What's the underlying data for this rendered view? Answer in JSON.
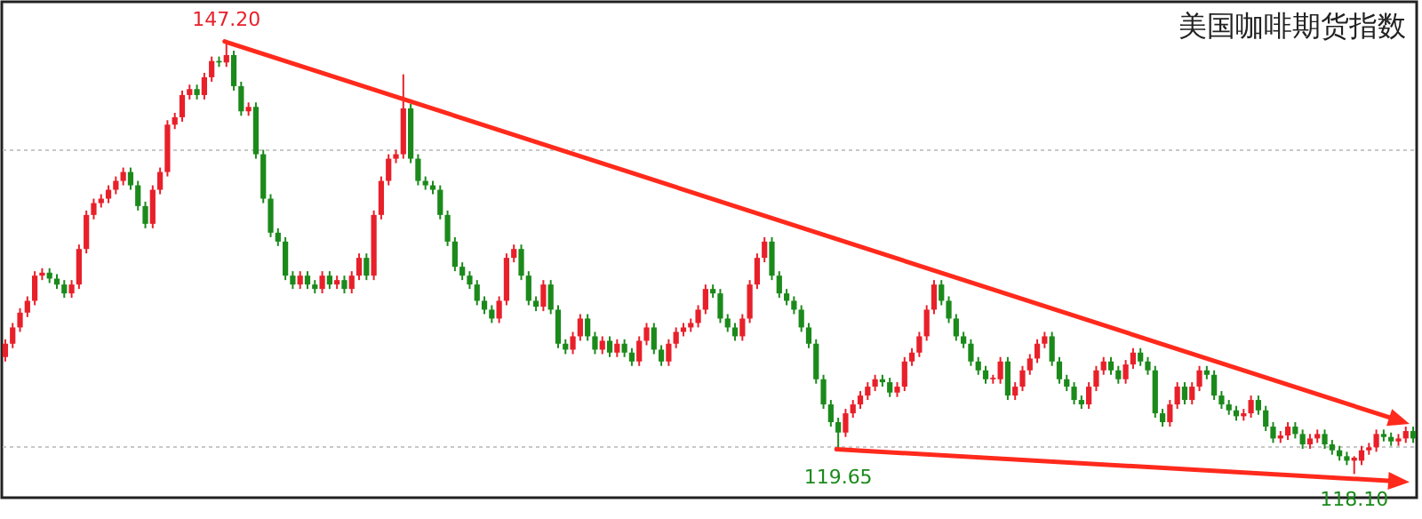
{
  "chart_data": {
    "type": "candlestick",
    "title": "美国咖啡期货指数",
    "categories": [
      null,
      null,
      null,
      null,
      null,
      null,
      null,
      null,
      null,
      null,
      null,
      null,
      null,
      null,
      null,
      null,
      null,
      null,
      null,
      null,
      null,
      null,
      null,
      null,
      null,
      null,
      null,
      null,
      null,
      null,
      null,
      null,
      null,
      null,
      null,
      null,
      null,
      null,
      null,
      null,
      null,
      null,
      null,
      null,
      null,
      null,
      null,
      null,
      null,
      null,
      null,
      null,
      null,
      null,
      null,
      null,
      null,
      null,
      null,
      null,
      null,
      null,
      null,
      null,
      null,
      null,
      null,
      null,
      null,
      null,
      null,
      null,
      null,
      null,
      null,
      null,
      null,
      null,
      null,
      null,
      null,
      null,
      null,
      null,
      null,
      null,
      null,
      null,
      null,
      null,
      null,
      null,
      null,
      null,
      null,
      null,
      null,
      null,
      null,
      null,
      null,
      null,
      null,
      null,
      null,
      null,
      null,
      null,
      null,
      null,
      null,
      null,
      null,
      null,
      null,
      null,
      null,
      null,
      null,
      null,
      null,
      null,
      null,
      null,
      null,
      null,
      null,
      null,
      null,
      null,
      null,
      null,
      null,
      null,
      null,
      null,
      null,
      null,
      null,
      null,
      null,
      null,
      null,
      null,
      null,
      null,
      null,
      null,
      null,
      null,
      null,
      null,
      null,
      null,
      null,
      null,
      null,
      null,
      null,
      null,
      null,
      null,
      null,
      null,
      null,
      null,
      null,
      null,
      null,
      null,
      null,
      null,
      null,
      null,
      null,
      null,
      null,
      null,
      null,
      null,
      null,
      null,
      null,
      null,
      null,
      null,
      null,
      null,
      null,
      null,
      null,
      null
    ],
    "ohlc": [
      [
        126.0,
        127.2,
        125.7,
        126.9
      ],
      [
        126.9,
        128.3,
        126.6,
        128.0
      ],
      [
        128.0,
        129.3,
        127.7,
        129.0
      ],
      [
        129.0,
        130.1,
        128.7,
        129.8
      ],
      [
        129.8,
        131.8,
        129.5,
        131.5
      ],
      [
        131.5,
        132.0,
        131.2,
        131.7
      ],
      [
        131.7,
        132.0,
        131.0,
        131.3
      ],
      [
        131.3,
        131.6,
        130.6,
        130.9
      ],
      [
        130.9,
        131.2,
        130.0,
        130.3
      ],
      [
        130.3,
        131.2,
        130.0,
        130.9
      ],
      [
        130.9,
        133.6,
        130.6,
        133.3
      ],
      [
        133.3,
        135.9,
        133.0,
        135.6
      ],
      [
        135.6,
        136.7,
        135.3,
        136.4
      ],
      [
        136.4,
        137.0,
        136.1,
        136.7
      ],
      [
        136.7,
        137.6,
        136.4,
        137.3
      ],
      [
        137.3,
        138.2,
        137.0,
        137.9
      ],
      [
        137.9,
        138.8,
        137.6,
        138.5
      ],
      [
        138.5,
        138.8,
        137.3,
        137.6
      ],
      [
        137.6,
        137.9,
        135.9,
        136.2
      ],
      [
        136.2,
        136.5,
        134.7,
        135.0
      ],
      [
        135.0,
        137.6,
        134.7,
        137.3
      ],
      [
        137.3,
        138.8,
        137.0,
        138.5
      ],
      [
        138.5,
        142.0,
        138.2,
        141.7
      ],
      [
        141.7,
        142.5,
        141.4,
        142.2
      ],
      [
        142.2,
        144.0,
        141.9,
        143.7
      ],
      [
        143.7,
        144.4,
        143.4,
        144.1
      ],
      [
        144.1,
        144.4,
        143.4,
        143.7
      ],
      [
        143.7,
        145.2,
        143.4,
        144.9
      ],
      [
        144.9,
        146.3,
        144.6,
        146.0
      ],
      [
        146.0,
        146.3,
        145.6,
        145.9
      ],
      [
        145.9,
        147.2,
        145.6,
        146.4
      ],
      [
        146.4,
        146.7,
        144.0,
        144.3
      ],
      [
        144.3,
        144.6,
        142.3,
        142.6
      ],
      [
        142.6,
        143.2,
        142.3,
        142.9
      ],
      [
        142.9,
        143.2,
        139.4,
        139.7
      ],
      [
        139.7,
        140.0,
        136.4,
        136.7
      ],
      [
        136.7,
        137.0,
        134.1,
        134.4
      ],
      [
        134.4,
        134.7,
        133.5,
        133.8
      ],
      [
        133.8,
        134.1,
        131.2,
        131.5
      ],
      [
        131.5,
        131.8,
        130.6,
        130.9
      ],
      [
        130.9,
        131.8,
        130.6,
        131.5
      ],
      [
        131.5,
        131.8,
        130.6,
        130.9
      ],
      [
        130.9,
        131.2,
        130.3,
        130.6
      ],
      [
        130.6,
        131.8,
        130.3,
        131.5
      ],
      [
        131.5,
        131.8,
        130.6,
        130.9
      ],
      [
        130.9,
        131.5,
        130.6,
        131.2
      ],
      [
        131.2,
        131.5,
        130.3,
        130.6
      ],
      [
        130.6,
        131.8,
        130.3,
        131.5
      ],
      [
        131.5,
        133.0,
        131.2,
        132.7
      ],
      [
        132.7,
        133.0,
        131.2,
        131.5
      ],
      [
        131.5,
        135.9,
        131.2,
        135.6
      ],
      [
        135.6,
        138.2,
        135.3,
        137.9
      ],
      [
        137.9,
        139.7,
        137.6,
        139.4
      ],
      [
        139.4,
        140.0,
        139.1,
        139.7
      ],
      [
        139.7,
        145.1,
        139.4,
        142.8
      ],
      [
        142.8,
        143.1,
        139.1,
        139.4
      ],
      [
        139.4,
        139.7,
        137.6,
        137.9
      ],
      [
        137.9,
        138.2,
        137.3,
        137.6
      ],
      [
        137.6,
        137.9,
        137.0,
        137.3
      ],
      [
        137.3,
        137.6,
        135.3,
        135.6
      ],
      [
        135.6,
        135.9,
        133.5,
        133.8
      ],
      [
        133.8,
        134.1,
        131.8,
        132.1
      ],
      [
        132.1,
        132.4,
        131.2,
        131.5
      ],
      [
        131.5,
        131.8,
        130.6,
        130.9
      ],
      [
        130.9,
        131.2,
        129.5,
        129.8
      ],
      [
        129.8,
        130.1,
        128.9,
        129.2
      ],
      [
        129.2,
        129.5,
        128.3,
        128.6
      ],
      [
        128.6,
        130.1,
        128.3,
        129.8
      ],
      [
        129.8,
        133.0,
        129.5,
        132.7
      ],
      [
        132.7,
        133.6,
        132.4,
        133.3
      ],
      [
        133.3,
        133.6,
        131.2,
        131.5
      ],
      [
        131.5,
        131.8,
        129.5,
        129.8
      ],
      [
        129.8,
        130.1,
        129.1,
        129.4
      ],
      [
        129.4,
        131.2,
        129.1,
        130.9
      ],
      [
        130.9,
        131.2,
        128.9,
        129.2
      ],
      [
        129.2,
        129.5,
        126.6,
        126.9
      ],
      [
        126.9,
        127.2,
        126.2,
        126.5
      ],
      [
        126.5,
        127.7,
        126.2,
        127.4
      ],
      [
        127.4,
        128.9,
        127.1,
        128.6
      ],
      [
        128.6,
        128.9,
        127.1,
        127.4
      ],
      [
        127.4,
        127.7,
        126.2,
        126.5
      ],
      [
        126.5,
        127.4,
        126.2,
        127.1
      ],
      [
        127.1,
        127.4,
        126.0,
        126.3
      ],
      [
        126.3,
        127.2,
        126.0,
        126.9
      ],
      [
        126.9,
        127.2,
        126.0,
        126.3
      ],
      [
        126.3,
        126.6,
        125.4,
        125.7
      ],
      [
        125.7,
        127.4,
        125.4,
        127.1
      ],
      [
        127.1,
        128.3,
        126.8,
        128.0
      ],
      [
        128.0,
        128.3,
        126.2,
        126.5
      ],
      [
        126.5,
        126.8,
        125.4,
        125.7
      ],
      [
        125.7,
        127.2,
        125.4,
        126.9
      ],
      [
        126.9,
        128.0,
        126.6,
        127.7
      ],
      [
        127.7,
        128.3,
        127.4,
        128.0
      ],
      [
        128.0,
        128.6,
        127.7,
        128.3
      ],
      [
        128.3,
        129.5,
        128.0,
        129.2
      ],
      [
        129.2,
        130.9,
        128.9,
        130.6
      ],
      [
        130.6,
        130.9,
        130.0,
        130.3
      ],
      [
        130.3,
        130.6,
        128.3,
        128.6
      ],
      [
        128.6,
        128.9,
        127.7,
        128.0
      ],
      [
        128.0,
        128.3,
        127.1,
        127.4
      ],
      [
        127.4,
        128.9,
        127.1,
        128.6
      ],
      [
        128.6,
        131.2,
        128.3,
        130.9
      ],
      [
        130.9,
        133.0,
        130.6,
        132.7
      ],
      [
        132.7,
        134.1,
        132.4,
        133.8
      ],
      [
        133.8,
        134.1,
        131.2,
        131.5
      ],
      [
        131.5,
        131.8,
        130.0,
        130.3
      ],
      [
        130.3,
        130.6,
        129.5,
        129.8
      ],
      [
        129.8,
        130.1,
        128.9,
        129.2
      ],
      [
        129.2,
        129.5,
        127.7,
        128.0
      ],
      [
        128.0,
        128.3,
        126.6,
        126.9
      ],
      [
        126.9,
        127.2,
        124.2,
        124.5
      ],
      [
        124.5,
        124.8,
        122.5,
        122.8
      ],
      [
        122.8,
        123.1,
        121.3,
        121.6
      ],
      [
        121.6,
        121.9,
        119.65,
        120.9
      ],
      [
        120.9,
        122.5,
        120.6,
        122.2
      ],
      [
        122.2,
        123.1,
        121.9,
        122.8
      ],
      [
        122.8,
        123.7,
        122.5,
        123.4
      ],
      [
        123.4,
        124.3,
        123.1,
        124.0
      ],
      [
        124.0,
        124.8,
        123.7,
        124.5
      ],
      [
        124.5,
        124.8,
        124.0,
        124.3
      ],
      [
        124.3,
        124.6,
        123.3,
        123.6
      ],
      [
        123.6,
        124.3,
        123.3,
        124.0
      ],
      [
        124.0,
        126.0,
        123.7,
        125.7
      ],
      [
        125.7,
        126.6,
        125.4,
        126.3
      ],
      [
        126.3,
        127.7,
        126.0,
        127.4
      ],
      [
        127.4,
        129.5,
        127.1,
        129.2
      ],
      [
        129.2,
        131.2,
        128.9,
        130.9
      ],
      [
        130.9,
        131.2,
        129.5,
        129.8
      ],
      [
        129.8,
        130.1,
        128.3,
        128.6
      ],
      [
        128.6,
        128.9,
        127.1,
        127.4
      ],
      [
        127.4,
        127.7,
        126.6,
        126.9
      ],
      [
        126.9,
        127.2,
        125.4,
        125.7
      ],
      [
        125.7,
        126.0,
        124.8,
        125.1
      ],
      [
        125.1,
        125.4,
        124.2,
        124.5
      ],
      [
        124.5,
        124.8,
        124.2,
        124.6
      ],
      [
        124.5,
        126.0,
        124.2,
        125.7
      ],
      [
        125.7,
        126.0,
        123.1,
        123.4
      ],
      [
        123.4,
        124.3,
        123.1,
        124.0
      ],
      [
        124.0,
        125.4,
        123.7,
        125.1
      ],
      [
        125.1,
        126.2,
        124.8,
        125.9
      ],
      [
        125.9,
        127.2,
        125.6,
        126.9
      ],
      [
        126.9,
        127.7,
        126.6,
        127.4
      ],
      [
        127.4,
        127.7,
        125.4,
        125.7
      ],
      [
        125.7,
        126.0,
        124.2,
        124.5
      ],
      [
        124.5,
        124.8,
        123.7,
        124.0
      ],
      [
        124.0,
        124.3,
        122.8,
        123.1
      ],
      [
        123.1,
        123.4,
        122.5,
        122.8
      ],
      [
        122.8,
        124.3,
        122.5,
        124.0
      ],
      [
        124.0,
        125.4,
        123.7,
        125.1
      ],
      [
        125.1,
        126.0,
        124.8,
        125.7
      ],
      [
        125.7,
        126.0,
        124.8,
        125.1
      ],
      [
        125.1,
        125.4,
        124.2,
        124.5
      ],
      [
        124.5,
        125.8,
        124.2,
        125.5
      ],
      [
        125.5,
        126.6,
        125.2,
        126.3
      ],
      [
        126.3,
        126.6,
        125.4,
        125.7
      ],
      [
        125.7,
        126.0,
        124.8,
        125.1
      ],
      [
        125.1,
        125.4,
        121.9,
        122.2
      ],
      [
        122.2,
        122.5,
        121.3,
        121.6
      ],
      [
        121.6,
        123.1,
        121.3,
        122.8
      ],
      [
        122.8,
        124.3,
        122.5,
        124.0
      ],
      [
        124.0,
        124.3,
        122.8,
        123.1
      ],
      [
        123.1,
        124.3,
        122.8,
        124.0
      ],
      [
        124.0,
        125.4,
        123.7,
        125.1
      ],
      [
        125.1,
        125.4,
        124.5,
        124.8
      ],
      [
        124.8,
        125.1,
        123.1,
        123.4
      ],
      [
        123.4,
        123.7,
        122.5,
        122.8
      ],
      [
        122.8,
        123.1,
        122.1,
        122.4
      ],
      [
        122.4,
        122.7,
        121.7,
        122.0
      ],
      [
        122.0,
        122.5,
        121.7,
        122.2
      ],
      [
        122.2,
        123.4,
        121.9,
        123.1
      ],
      [
        123.1,
        123.4,
        122.1,
        122.4
      ],
      [
        122.4,
        122.7,
        121.0,
        121.3
      ],
      [
        121.3,
        121.6,
        120.2,
        120.5
      ],
      [
        120.5,
        121.0,
        120.2,
        120.7
      ],
      [
        120.7,
        121.6,
        120.4,
        121.3
      ],
      [
        121.3,
        121.6,
        120.5,
        120.8
      ],
      [
        120.8,
        121.1,
        119.8,
        120.1
      ],
      [
        120.1,
        120.8,
        119.8,
        120.5
      ],
      [
        120.5,
        121.1,
        120.2,
        120.8
      ],
      [
        120.8,
        121.1,
        119.8,
        120.1
      ],
      [
        120.1,
        120.4,
        119.4,
        119.7
      ],
      [
        119.7,
        120.0,
        119.0,
        119.3
      ],
      [
        119.3,
        119.6,
        118.7,
        119.0
      ],
      [
        119.0,
        119.3,
        118.1,
        119.2
      ],
      [
        119.0,
        120.0,
        118.7,
        119.7
      ],
      [
        119.7,
        120.2,
        119.4,
        119.9
      ],
      [
        119.9,
        121.1,
        119.6,
        120.8
      ],
      [
        120.8,
        121.1,
        120.3,
        120.6
      ],
      [
        120.6,
        120.9,
        120.0,
        120.3
      ],
      [
        120.3,
        120.8,
        120.0,
        120.5
      ],
      [
        120.5,
        121.3,
        120.2,
        121.0
      ],
      [
        121.0,
        121.3,
        120.2,
        120.5
      ]
    ],
    "annotations": [
      {
        "text": "147.20",
        "y": 147.2
      },
      {
        "text": "119.65",
        "y": 119.65
      },
      {
        "text": "118.10",
        "y": 118.1
      }
    ],
    "ylim": [
      116.5,
      150
    ],
    "yticks": [
      {
        "value": 120,
        "label": null
      },
      {
        "value": 140,
        "label": null
      }
    ],
    "grid": true,
    "tick_labels": false
  }
}
